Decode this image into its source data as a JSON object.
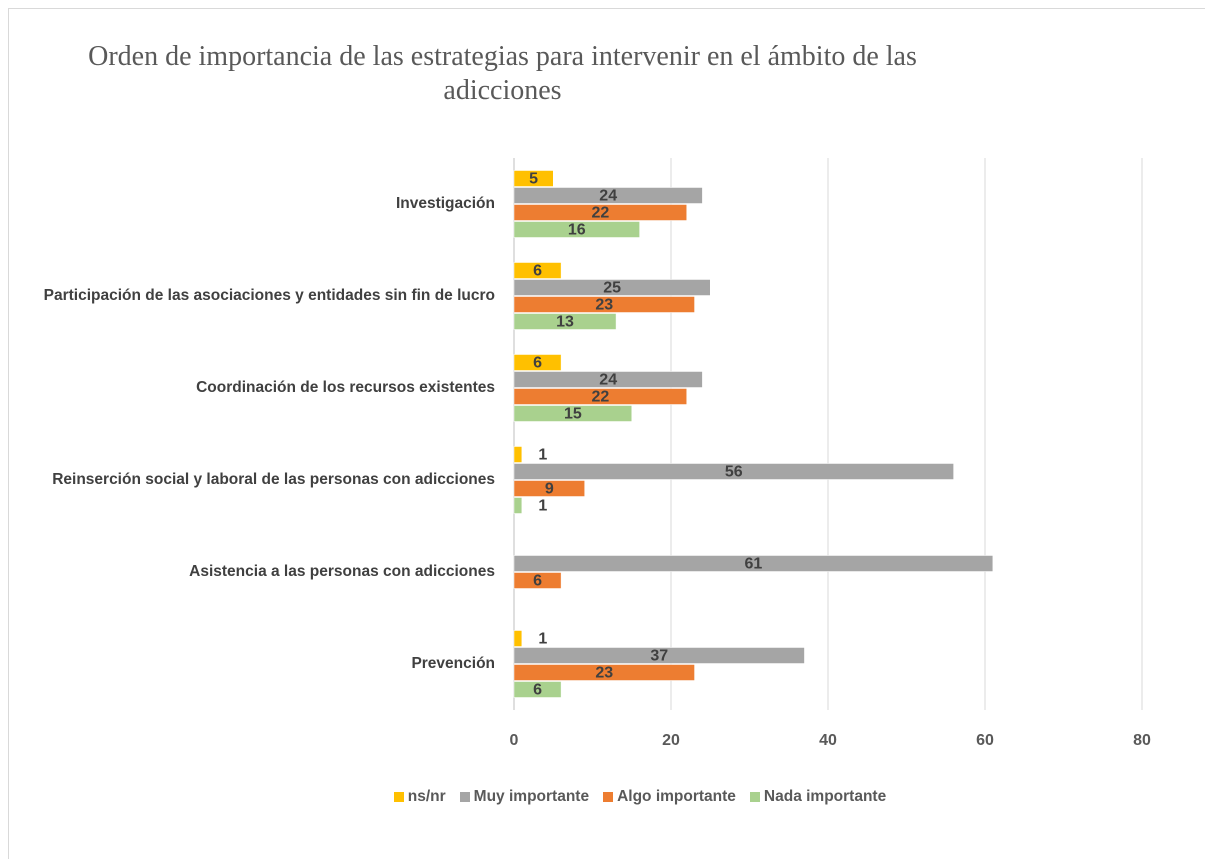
{
  "chart_data": {
    "type": "bar",
    "orientation": "horizontal",
    "title": "Orden de importancia de las estrategias para intervenir en el ámbito de las adicciones",
    "categories": [
      "Investigación",
      "Participación de las asociaciones y entidades sin fin de lucro",
      "Coordinación de los recursos existentes",
      "Reinserción social y laboral de las personas con adicciones",
      "Asistencia a las personas con adicciones",
      "Prevención"
    ],
    "series": [
      {
        "name": "ns/nr",
        "color": "#FFC000",
        "values": [
          5,
          6,
          6,
          1,
          null,
          1
        ]
      },
      {
        "name": "Muy importante",
        "color": "#A5A5A5",
        "values": [
          24,
          25,
          24,
          56,
          61,
          37
        ]
      },
      {
        "name": "Algo importante",
        "color": "#ED7D31",
        "values": [
          22,
          23,
          22,
          9,
          6,
          23
        ]
      },
      {
        "name": "Nada importante",
        "color": "#A9D18E",
        "values": [
          16,
          13,
          15,
          1,
          null,
          6
        ]
      }
    ],
    "xlim": [
      0,
      80
    ],
    "xticks": [
      0,
      20,
      40,
      60,
      80
    ],
    "grid": true,
    "legend": "bottom"
  }
}
